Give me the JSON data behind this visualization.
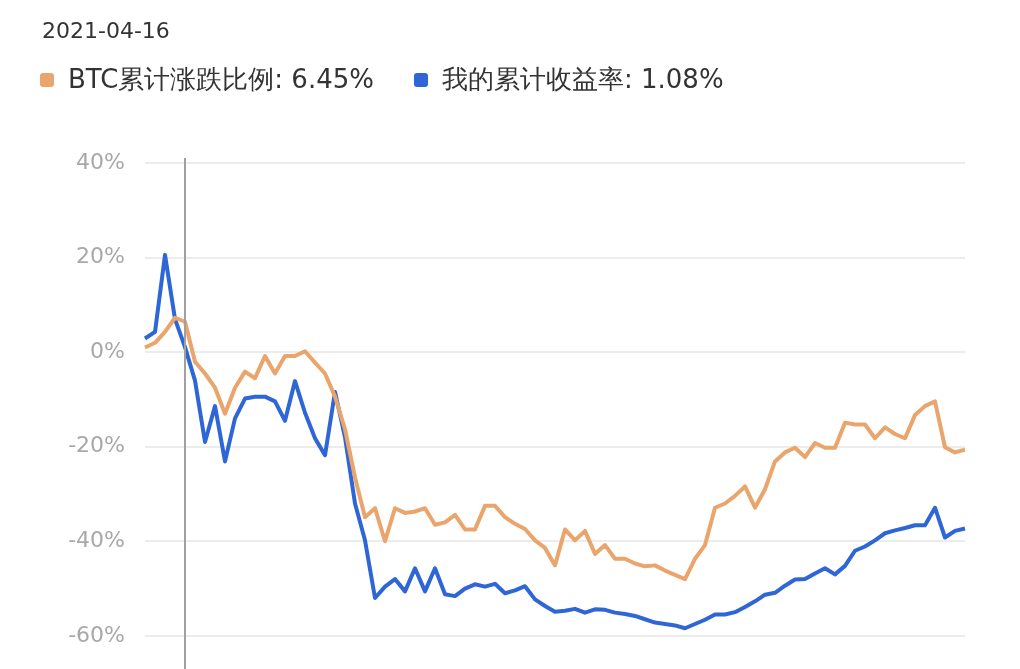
{
  "chart_data": {
    "type": "line",
    "title": "2021-04-16",
    "legend": "top left",
    "grid": "y",
    "tick_labels": "y",
    "categories": [
      null,
      null,
      null,
      null,
      null,
      null,
      null,
      null,
      null,
      null,
      null,
      null,
      null,
      null,
      null,
      null,
      null,
      null,
      null,
      null,
      null,
      null,
      null,
      null,
      null,
      null,
      null,
      null,
      null,
      null,
      null,
      null,
      null,
      null,
      null,
      null,
      null,
      null,
      null,
      null,
      null,
      null,
      null,
      null,
      null,
      null,
      null,
      null,
      null,
      null,
      null,
      null,
      null,
      null,
      null,
      null,
      null,
      null,
      null,
      null,
      null,
      null,
      null,
      null,
      null,
      null,
      null,
      null,
      null,
      null,
      null,
      null,
      null,
      null,
      null,
      null,
      null,
      null,
      null,
      null,
      null,
      null,
      null
    ],
    "ylim": [
      -60,
      40
    ],
    "yticks": [
      {
        "value": -60,
        "label": "-60%"
      },
      {
        "value": -40,
        "label": "-40%"
      },
      {
        "value": -20,
        "label": "-20%"
      },
      {
        "value": 0,
        "label": "0%"
      },
      {
        "value": 20,
        "label": "20%"
      },
      {
        "value": 40,
        "label": "40%"
      }
    ],
    "series": [
      {
        "name": "BTC累计涨跌比例: 6.45%",
        "color": "#e9a56c",
        "values": [
          1,
          2,
          4.3,
          7.3,
          6.45,
          -2,
          -4.5,
          -7.5,
          -13,
          -7.5,
          -4.1,
          -5.5,
          -0.8,
          -4.5,
          -0.8,
          -0.8,
          0.2,
          -2.2,
          -4.5,
          -9.4,
          -16.3,
          -26.5,
          -34.9,
          -33,
          -40,
          -33,
          -34,
          -33.7,
          -33,
          -36.5,
          -36,
          -34.4,
          -37.5,
          -37.5,
          -32.5,
          -32.5,
          -34.9,
          -36.3,
          -37.4,
          -39.8,
          -41.4,
          -45.1,
          -37.5,
          -39.8,
          -37.8,
          -42.7,
          -40.8,
          -43.7,
          -43.7,
          -44.7,
          -45.3,
          -45.1,
          -46.2,
          -47.1,
          -48,
          -43.7,
          -40.8,
          -32.9,
          -32,
          -30.4,
          -28.4,
          -32.9,
          -29,
          -23.1,
          -21.2,
          -20.2,
          -22.2,
          -19.2,
          -20.2,
          -20.2,
          -14.9,
          -15.3,
          -15.3,
          -18.2,
          -15.9,
          -17.3,
          -18.2,
          -13.3,
          -11.4,
          -10.4,
          -20.1,
          -21.2,
          -20.6
        ]
      },
      {
        "name": "我的累计收益率: 1.08%",
        "color": "#2f66d6",
        "values": [
          2.9,
          4.3,
          20.6,
          7,
          1.08,
          -6,
          -19,
          -11.4,
          -23.1,
          -14,
          -9.8,
          -9.4,
          -9.4,
          -10.4,
          -14.5,
          -6.1,
          -12.8,
          -18.2,
          -21.8,
          -8.4,
          -18,
          -32,
          -39.8,
          -52,
          -49.6,
          -48,
          -50.6,
          -45.7,
          -50.6,
          -45.7,
          -51.2,
          -51.6,
          -50,
          -49.1,
          -49.6,
          -49,
          -51,
          -50.4,
          -49.5,
          -52.3,
          -53.7,
          -54.9,
          -54.7,
          -54.3,
          -55.1,
          -54.4,
          -54.5,
          -55.1,
          -55.4,
          -55.8,
          -56.5,
          -57.2,
          -57.5,
          -57.8,
          -58.4,
          -57.5,
          -56.6,
          -55.5,
          -55.5,
          -55,
          -53.9,
          -52.7,
          -51.3,
          -50.9,
          -49.4,
          -48.1,
          -48,
          -46.8,
          -45.7,
          -47,
          -45.2,
          -42,
          -41.1,
          -39.8,
          -38.3,
          -37.7,
          -37.2,
          -36.6,
          -36.6,
          -32.9,
          -39.2,
          -37.8,
          -37.3
        ]
      }
    ]
  }
}
